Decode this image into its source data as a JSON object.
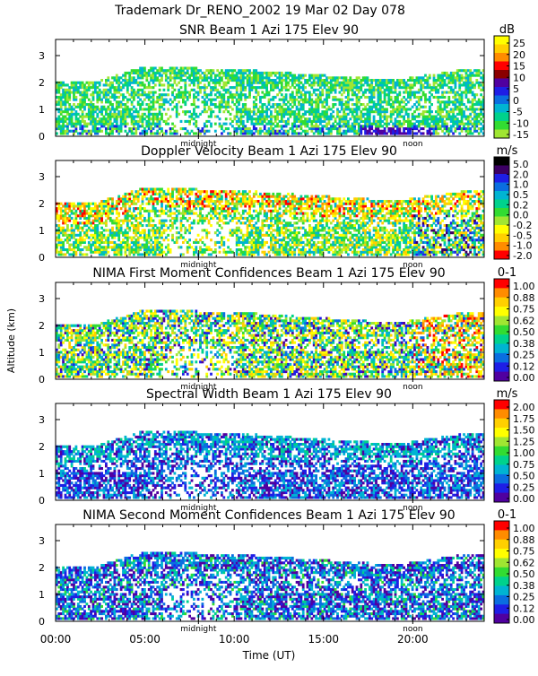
{
  "header": "Trademark Dr_RENO_2002   19 Mar 02 Day 078",
  "ylabel": "Altitude (km)",
  "xlabel": "Time (UT)",
  "xticks": [
    "00:00",
    "05:00",
    "10:00",
    "15:00",
    "20:00"
  ],
  "yticks": [
    "0",
    "1",
    "2",
    "3"
  ],
  "markers": {
    "midnight": "midnight",
    "noon": "noon"
  },
  "chart_data": [
    {
      "type": "heatmap",
      "title": "SNR Beam 1 Azi 175 Elev 90",
      "unit": "dB",
      "colorbar_labels": [
        "25",
        "20",
        "15",
        "10",
        "5",
        "0",
        "-5",
        "-10",
        "-15"
      ],
      "colors": [
        "#ffff00",
        "#ffd000",
        "#ff8c00",
        "#ff0000",
        "#8b0000",
        "#5000a0",
        "#1e1ee6",
        "#0a6ee0",
        "#00b4d2",
        "#00d28c",
        "#32dc32",
        "#a0e632"
      ],
      "x_range_hours": [
        0,
        24
      ],
      "y_range_km": [
        0,
        3.6
      ],
      "style": "snr"
    },
    {
      "type": "heatmap",
      "title": "Doppler Velocity Beam 1 Azi 175 Elev 90",
      "unit": "m/s",
      "colorbar_labels": [
        "5.0",
        "2.0",
        "1.0",
        "0.5",
        "0.2",
        "0.0",
        "-0.2",
        "-0.5",
        "-1.0",
        "-2.0"
      ],
      "colors": [
        "#000000",
        "#3c0064",
        "#1e1ee6",
        "#0a6ee0",
        "#00b4d2",
        "#00d28c",
        "#32dc32",
        "#a0e632",
        "#ffff00",
        "#ffd000",
        "#ff8c00",
        "#ff0000"
      ],
      "x_range_hours": [
        0,
        24
      ],
      "y_range_km": [
        0,
        3.6
      ],
      "style": "dop"
    },
    {
      "type": "heatmap",
      "title": "NIMA First Moment Confidences Beam 1 Azi 175 Elev 90",
      "unit": "0-1",
      "colorbar_labels": [
        "1.00",
        "0.88",
        "0.75",
        "0.62",
        "0.50",
        "0.38",
        "0.25",
        "0.12",
        "0.00"
      ],
      "colors": [
        "#ff0000",
        "#ff8c00",
        "#ffd000",
        "#ffff00",
        "#a0e632",
        "#32dc32",
        "#00d28c",
        "#00b4d2",
        "#0a6ee0",
        "#1e1ee6",
        "#5000a0"
      ],
      "x_range_hours": [
        0,
        24
      ],
      "y_range_km": [
        0,
        3.6
      ],
      "style": "conf1"
    },
    {
      "type": "heatmap",
      "title": "Spectral Width Beam 1 Azi 175 Elev 90",
      "unit": "m/s",
      "colorbar_labels": [
        "2.00",
        "1.75",
        "1.50",
        "1.25",
        "1.00",
        "0.75",
        "0.50",
        "0.25",
        "0.00"
      ],
      "colors": [
        "#ff0000",
        "#ff8c00",
        "#ffd000",
        "#ffff00",
        "#a0e632",
        "#32dc32",
        "#00d28c",
        "#00b4d2",
        "#0a6ee0",
        "#1e1ee6",
        "#5000a0"
      ],
      "x_range_hours": [
        0,
        24
      ],
      "y_range_km": [
        0,
        3.6
      ],
      "style": "width"
    },
    {
      "type": "heatmap",
      "title": "NIMA Second Moment Confidences Beam 1 Azi 175 Elev 90",
      "unit": "0-1",
      "colorbar_labels": [
        "1.00",
        "0.88",
        "0.75",
        "0.62",
        "0.50",
        "0.38",
        "0.25",
        "0.12",
        "0.00"
      ],
      "colors": [
        "#ff0000",
        "#ff8c00",
        "#ffd000",
        "#ffff00",
        "#a0e632",
        "#32dc32",
        "#00d28c",
        "#00b4d2",
        "#0a6ee0",
        "#1e1ee6",
        "#5000a0"
      ],
      "x_range_hours": [
        0,
        24
      ],
      "y_range_km": [
        0,
        3.6
      ],
      "style": "conf2"
    }
  ]
}
